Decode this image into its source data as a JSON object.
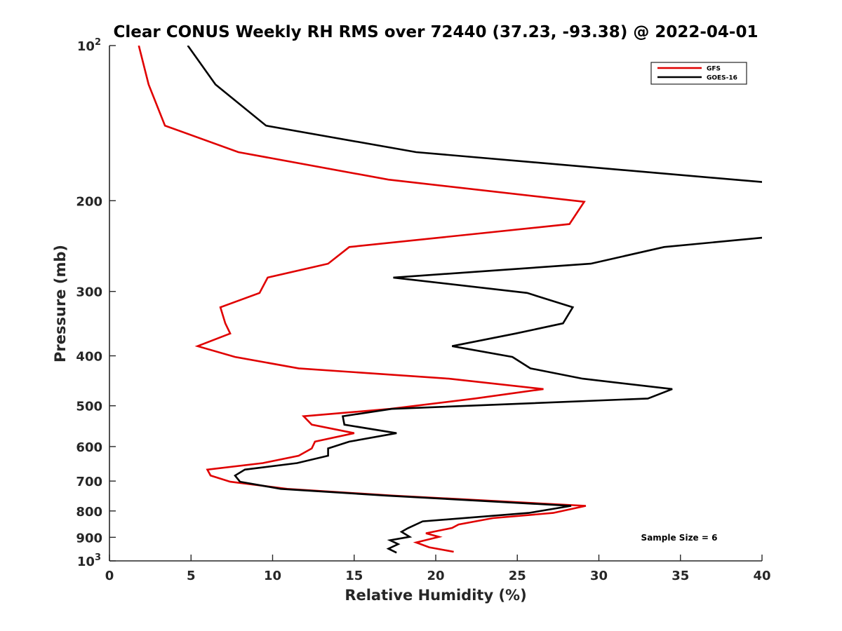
{
  "chart_data": {
    "type": "line",
    "title": "Clear CONUS Weekly RH RMS over 72440 (37.23, -93.38) @ 2022-04-01",
    "xlabel": "Relative Humidity (%)",
    "ylabel": "Pressure (mb)",
    "xlim": [
      0,
      40
    ],
    "ylim": [
      100,
      1000
    ],
    "y_scale": "log",
    "y_reversed": true,
    "grid": false,
    "legend_position": "top-right",
    "x_ticks": [
      "0",
      "5",
      "10",
      "15",
      "20",
      "25",
      "30",
      "35",
      "40"
    ],
    "y_ticks": [
      {
        "value": 100,
        "label": "10",
        "sup": "2"
      },
      {
        "value": 200,
        "label": "200",
        "sup": ""
      },
      {
        "value": 300,
        "label": "300",
        "sup": ""
      },
      {
        "value": 400,
        "label": "400",
        "sup": ""
      },
      {
        "value": 500,
        "label": "500",
        "sup": ""
      },
      {
        "value": 600,
        "label": "600",
        "sup": ""
      },
      {
        "value": 700,
        "label": "700",
        "sup": ""
      },
      {
        "value": 800,
        "label": "800",
        "sup": ""
      },
      {
        "value": 900,
        "label": "900",
        "sup": ""
      },
      {
        "value": 1000,
        "label": "10",
        "sup": "3"
      }
    ],
    "annotation": "Sample Size = 6",
    "series": [
      {
        "name": "GFS",
        "color": "#e00000",
        "points": [
          [
            1.8,
            100
          ],
          [
            2.4,
            119
          ],
          [
            3.4,
            143
          ],
          [
            7.9,
            161
          ],
          [
            17.1,
            182
          ],
          [
            29.1,
            201
          ],
          [
            28.2,
            222
          ],
          [
            14.7,
            246
          ],
          [
            13.4,
            265
          ],
          [
            9.7,
            282
          ],
          [
            9.2,
            302
          ],
          [
            6.8,
            322
          ],
          [
            7.1,
            346
          ],
          [
            7.4,
            362
          ],
          [
            5.4,
            383
          ],
          [
            7.7,
            402
          ],
          [
            11.6,
            423
          ],
          [
            20.8,
            443
          ],
          [
            26.6,
            464
          ],
          [
            22.4,
            484
          ],
          [
            17.2,
            507
          ],
          [
            11.9,
            524
          ],
          [
            12.4,
            544
          ],
          [
            15.0,
            565
          ],
          [
            12.6,
            587
          ],
          [
            12.4,
            605
          ],
          [
            11.6,
            625
          ],
          [
            9.4,
            646
          ],
          [
            6.0,
            665
          ],
          [
            6.2,
            683
          ],
          [
            7.4,
            702
          ],
          [
            10.9,
            725
          ],
          [
            17.4,
            747
          ],
          [
            29.2,
            782
          ],
          [
            27.2,
            807
          ],
          [
            23.5,
            826
          ],
          [
            21.4,
            850
          ],
          [
            21.0,
            863
          ],
          [
            19.4,
            884
          ],
          [
            20.2,
            898
          ],
          [
            18.8,
            921
          ],
          [
            19.6,
            941
          ],
          [
            21.1,
            960
          ]
        ]
      },
      {
        "name": "GOES-16",
        "color": "#000000",
        "points": [
          [
            4.8,
            100
          ],
          [
            6.5,
            119
          ],
          [
            9.6,
            143
          ],
          [
            18.8,
            161
          ],
          [
            40.0,
            184
          ],
          [
            null,
            null
          ],
          [
            40.0,
            236
          ],
          [
            34.0,
            246
          ],
          [
            29.5,
            265
          ],
          [
            17.4,
            282
          ],
          [
            25.6,
            302
          ],
          [
            28.4,
            322
          ],
          [
            27.8,
            346
          ],
          [
            24.9,
            362
          ],
          [
            21.0,
            383
          ],
          [
            24.7,
            402
          ],
          [
            25.8,
            423
          ],
          [
            29.0,
            443
          ],
          [
            34.5,
            464
          ],
          [
            33.0,
            484
          ],
          [
            17.3,
            507
          ],
          [
            14.3,
            524
          ],
          [
            14.4,
            544
          ],
          [
            17.6,
            565
          ],
          [
            14.7,
            587
          ],
          [
            13.4,
            605
          ],
          [
            13.4,
            625
          ],
          [
            11.5,
            646
          ],
          [
            8.3,
            665
          ],
          [
            7.7,
            683
          ],
          [
            8.0,
            702
          ],
          [
            10.5,
            725
          ],
          [
            17.0,
            747
          ],
          [
            28.3,
            782
          ],
          [
            25.7,
            807
          ],
          [
            19.2,
            838
          ],
          [
            18.3,
            864
          ],
          [
            17.9,
            878
          ],
          [
            18.4,
            898
          ],
          [
            17.2,
            912
          ],
          [
            17.7,
            928
          ],
          [
            17.1,
            947
          ],
          [
            17.6,
            964
          ]
        ]
      }
    ]
  }
}
